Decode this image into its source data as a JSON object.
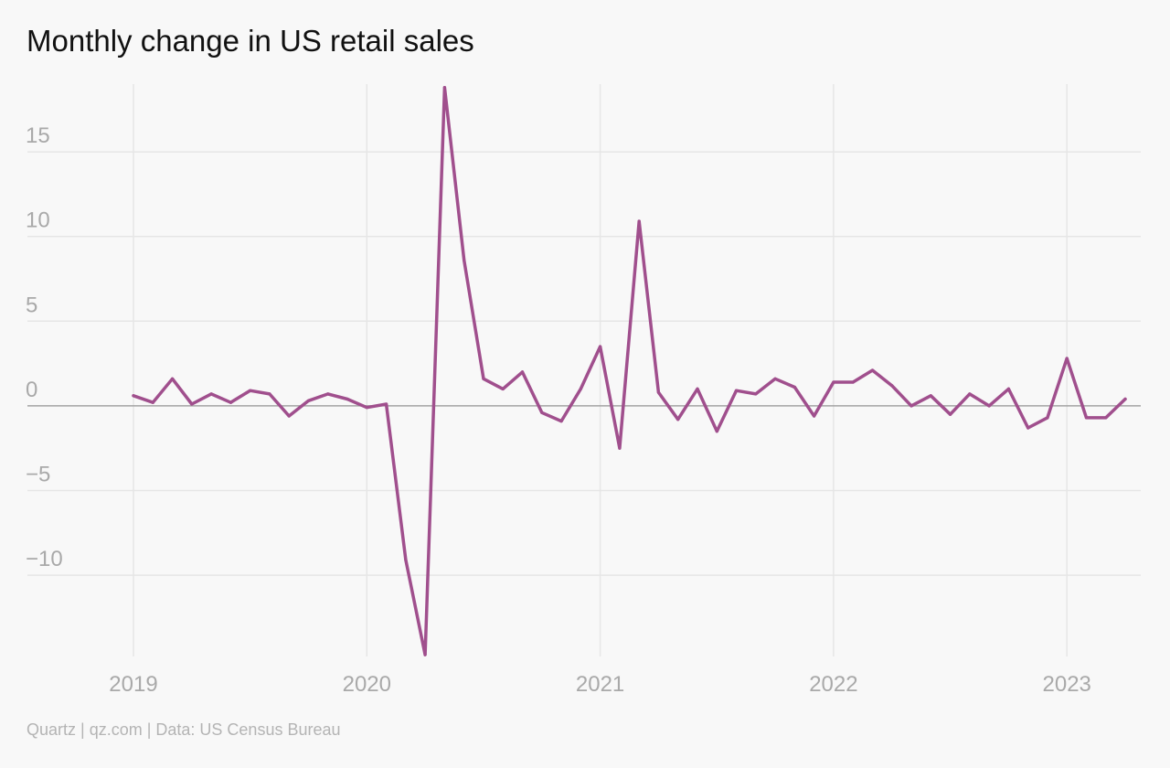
{
  "title": "Monthly change in US retail sales",
  "source": "Quartz | qz.com | Data: US Census Bureau",
  "colors": {
    "line": "#a04f8d",
    "grid": "#e6e6e6",
    "zero_line": "#a3a3a3",
    "tick_text": "#a9a9a9",
    "background": "#f8f8f8"
  },
  "chart_data": {
    "type": "line",
    "title": "Monthly change in US retail sales",
    "xlabel": "",
    "ylabel": "",
    "x_tick_labels": [
      "2019",
      "2020",
      "2021",
      "2022",
      "2023"
    ],
    "y_ticks": [
      15,
      10,
      5,
      0,
      -5,
      -10
    ],
    "y_tick_labels": [
      "15",
      "10",
      "5",
      "0",
      "−5",
      "−10"
    ],
    "ylim": [
      -14.8,
      19.0
    ],
    "xlim": [
      "2019-01",
      "2023-04"
    ],
    "grid": true,
    "legend": "none",
    "series": [
      {
        "x": [
          "2019-01",
          "2019-02",
          "2019-03",
          "2019-04",
          "2019-05",
          "2019-06",
          "2019-07",
          "2019-08",
          "2019-09",
          "2019-10",
          "2019-11",
          "2019-12",
          "2020-01",
          "2020-02",
          "2020-03",
          "2020-04",
          "2020-05",
          "2020-06",
          "2020-07",
          "2020-08",
          "2020-09",
          "2020-10",
          "2020-11",
          "2020-12",
          "2021-01",
          "2021-02",
          "2021-03",
          "2021-04",
          "2021-05",
          "2021-06",
          "2021-07",
          "2021-08",
          "2021-09",
          "2021-10",
          "2021-11",
          "2021-12",
          "2022-01",
          "2022-02",
          "2022-03",
          "2022-04",
          "2022-05",
          "2022-06",
          "2022-07",
          "2022-08",
          "2022-09",
          "2022-10",
          "2022-11",
          "2022-12",
          "2023-01",
          "2023-02",
          "2023-03",
          "2023-04"
        ],
        "values": [
          0.6,
          0.2,
          1.6,
          0.1,
          0.7,
          0.2,
          0.9,
          0.7,
          -0.6,
          0.3,
          0.7,
          0.4,
          -0.1,
          0.1,
          -9.1,
          -14.7,
          18.8,
          8.6,
          1.6,
          1.0,
          2.0,
          -0.4,
          -0.9,
          1.0,
          3.5,
          -2.5,
          10.9,
          0.8,
          -0.8,
          1.0,
          -1.5,
          0.9,
          0.7,
          1.6,
          1.1,
          -0.6,
          1.4,
          1.4,
          2.1,
          1.2,
          0.0,
          0.6,
          -0.5,
          0.7,
          0.0,
          1.0,
          -1.3,
          -0.7,
          2.8,
          -0.7,
          -0.7,
          0.4
        ]
      }
    ]
  }
}
